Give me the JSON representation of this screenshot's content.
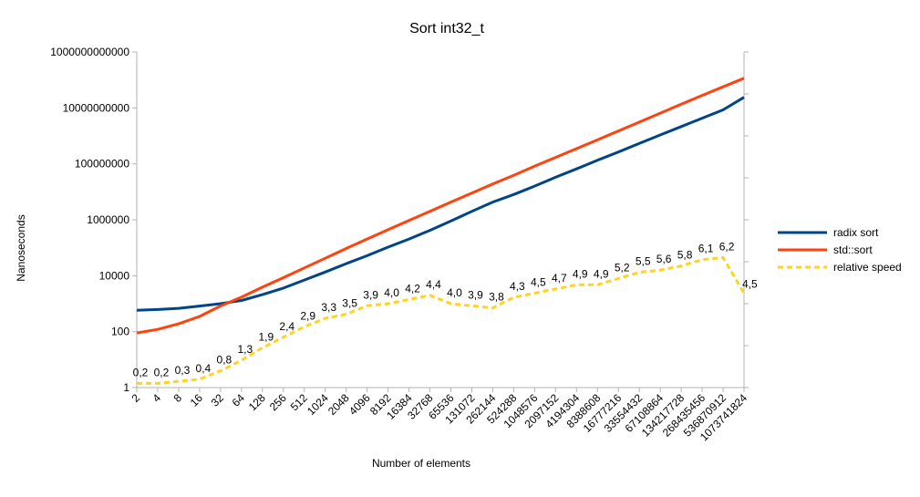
{
  "chart_data": {
    "type": "line",
    "title": "Sort int32_t",
    "xlabel": "Number of elements",
    "ylabel": "Nanoseconds",
    "yscale": "log",
    "ylim": [
      1,
      1000000000000
    ],
    "y_ticks": [
      "1",
      "100",
      "10000",
      "1000000",
      "100000000",
      "10000000000",
      "1000000000000"
    ],
    "categories": [
      "2",
      "4",
      "8",
      "16",
      "32",
      "64",
      "128",
      "256",
      "512",
      "1024",
      "2048",
      "4096",
      "8192",
      "16384",
      "32768",
      "65536",
      "131072",
      "262144",
      "524288",
      "1048576",
      "2097152",
      "4194304",
      "8388608",
      "16777216",
      "33554432",
      "67108864",
      "134217728",
      "268435456",
      "536870912",
      "1073741824"
    ],
    "series": [
      {
        "name": "radix sort",
        "color": "#004586",
        "style": "solid",
        "values": [
          580,
          620,
          680,
          820,
          1000,
          1300,
          2100,
          3600,
          7000,
          13500,
          27000,
          52000,
          105000,
          205000,
          420000,
          900000,
          2000000,
          4300000,
          8000000,
          16000000,
          33000000,
          66000000,
          135000000,
          265000000,
          540000000,
          1080000000,
          2150000000,
          4300000000,
          8500000000,
          24000000000
        ]
      },
      {
        "name": "std::sort",
        "color": "#ff420e",
        "style": "solid",
        "values": [
          90,
          120,
          190,
          350,
          830,
          1700,
          3900,
          8500,
          19000,
          42000,
          94000,
          205000,
          440000,
          950000,
          2000000,
          4300000,
          9000000,
          19000000,
          39000000,
          82000000,
          170000000,
          350000000,
          720000000,
          1500000000,
          3100000000,
          6500000000,
          13500000000,
          28000000000,
          57000000000,
          115000000000
        ]
      },
      {
        "name": "relative speed",
        "color": "#ffd320",
        "style": "dashed",
        "values": [
          0.2,
          0.2,
          0.3,
          0.4,
          0.8,
          1.3,
          1.9,
          2.4,
          2.9,
          3.3,
          3.5,
          3.9,
          4.0,
          4.2,
          4.4,
          4.0,
          3.9,
          3.8,
          4.3,
          4.5,
          4.7,
          4.9,
          4.9,
          5.2,
          5.5,
          5.6,
          5.8,
          6.1,
          6.2,
          4.5
        ],
        "labels": [
          "0,2",
          "0,2",
          "0,3",
          "0,4",
          "0,8",
          "1,3",
          "1,9",
          "2,4",
          "2,9",
          "3,3",
          "3,5",
          "3,9",
          "4,0",
          "4,2",
          "4,4",
          "4,0",
          "3,9",
          "3,8",
          "4,3",
          "4,5",
          "4,7",
          "4,9",
          "4,9",
          "5,2",
          "5,5",
          "5,6",
          "5,8",
          "6,1",
          "6,2",
          "4,5"
        ],
        "axis": "secondary",
        "ylim": [
          0,
          16
        ]
      }
    ],
    "legend_position": "right",
    "grid": false
  }
}
